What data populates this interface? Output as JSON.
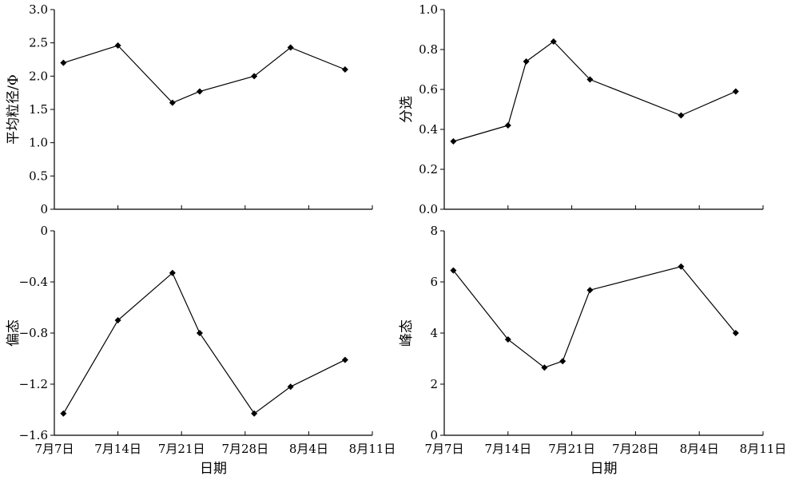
{
  "chart_data": [
    {
      "type": "line",
      "title": "",
      "xlabel": "",
      "ylabel": "平均粒径/Φ",
      "ylim": [
        0,
        3.0
      ],
      "y_ticks": [
        "3.0",
        "2.5",
        "2.0",
        "1.5",
        "1.0",
        "0.5",
        "0"
      ],
      "x_tick_labels": [],
      "grid": false,
      "x": [
        "7月8日",
        "7月14日",
        "7月20日",
        "7月23日",
        "7月29日",
        "8月2日",
        "8月8日"
      ],
      "values": [
        2.2,
        2.46,
        1.6,
        1.77,
        2.0,
        2.43,
        2.1
      ]
    },
    {
      "type": "line",
      "title": "",
      "xlabel": "",
      "ylabel": "分选",
      "ylim": [
        0,
        1.0
      ],
      "y_ticks": [
        "1.0",
        "0.8",
        "0.6",
        "0.4",
        "0.2",
        "0.0"
      ],
      "x_tick_labels": [],
      "grid": false,
      "x": [
        "7月8日",
        "7月14日",
        "7月16日",
        "7月19日",
        "7月23日",
        "8月2日",
        "8月8日"
      ],
      "values": [
        0.34,
        0.42,
        0.74,
        0.84,
        0.65,
        0.47,
        0.59
      ]
    },
    {
      "type": "line",
      "title": "",
      "xlabel": "日期",
      "ylabel": "偏态",
      "ylim": [
        -1.6,
        0
      ],
      "y_ticks": [
        "0",
        "−0.4",
        "−0.8",
        "−1.2",
        "−1.6"
      ],
      "x_tick_labels": [
        "7月7日",
        "7月14日",
        "7月21日",
        "7月28日",
        "8月4日",
        "8月11日"
      ],
      "grid": false,
      "x": [
        "7月8日",
        "7月14日",
        "7月20日",
        "7月23日",
        "7月29日",
        "8月2日",
        "8月8日"
      ],
      "values": [
        -1.43,
        -0.7,
        -0.33,
        -0.8,
        -1.43,
        -1.22,
        -1.01
      ]
    },
    {
      "type": "line",
      "title": "",
      "xlabel": "日期",
      "ylabel": "峰态",
      "ylim": [
        0,
        8
      ],
      "y_ticks": [
        "8",
        "6",
        "4",
        "2",
        "0"
      ],
      "x_tick_labels": [
        "7月7日",
        "7月14日",
        "7月21日",
        "7月28日",
        "8月4日",
        "8月11日"
      ],
      "grid": false,
      "x": [
        "7月8日",
        "7月14日",
        "7月18日",
        "7月20日",
        "7月23日",
        "8月2日",
        "8月8日"
      ],
      "values": [
        6.45,
        3.75,
        2.65,
        2.9,
        5.68,
        6.6,
        4.0
      ]
    }
  ]
}
